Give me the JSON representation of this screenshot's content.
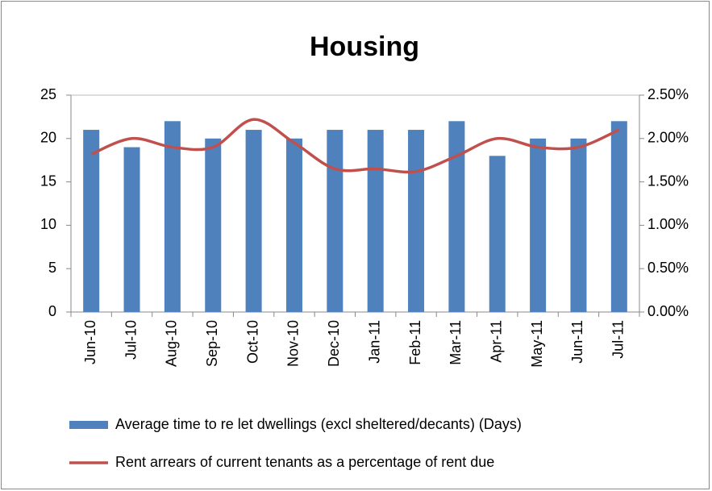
{
  "chart_data": {
    "type": "bar-line",
    "title": "Housing",
    "categories": [
      "Jun-10",
      "Jul-10",
      "Aug-10",
      "Sep-10",
      "Oct-10",
      "Nov-10",
      "Dec-10",
      "Jan-11",
      "Feb-11",
      "Mar-11",
      "Apr-11",
      "May-11",
      "Jun-11",
      "Jul-11"
    ],
    "series": [
      {
        "name": "Average time to re let dwellings (excl sheltered/decants) (Days)",
        "type": "bar",
        "color": "#4f81bd",
        "values": [
          21,
          19,
          22,
          20,
          21,
          20,
          21,
          21,
          21,
          22,
          18,
          20,
          20,
          22
        ]
      },
      {
        "name": "Rent arrears of current tenants as a percentage of rent due",
        "type": "line",
        "axis": "y2",
        "color": "#c0504d",
        "values": [
          1.82,
          2.0,
          1.9,
          1.9,
          2.22,
          1.95,
          1.65,
          1.65,
          1.62,
          1.8,
          2.0,
          1.9,
          1.9,
          2.1
        ]
      }
    ],
    "ylim": [
      0,
      25
    ],
    "yticks": [
      0,
      5,
      10,
      15,
      20,
      25
    ],
    "y2lim": [
      0,
      2.5
    ],
    "y2ticks": [
      {
        "value": 0,
        "label": "0.00%"
      },
      {
        "value": 0.5,
        "label": "0.50%"
      },
      {
        "value": 1,
        "label": "1.00%"
      },
      {
        "value": 1.5,
        "label": "1.50%"
      },
      {
        "value": 2,
        "label": "2.00%"
      },
      {
        "value": 2.5,
        "label": "2.50%"
      }
    ],
    "legend": "bottom"
  }
}
